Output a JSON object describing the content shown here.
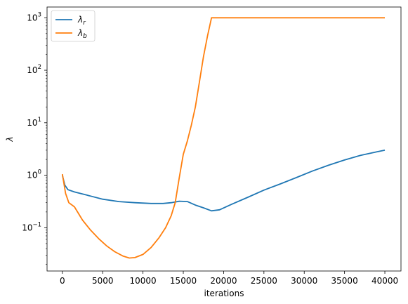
{
  "chart_data": {
    "type": "line",
    "xlabel": "iterations",
    "ylabel": "λ",
    "y_scale": "log",
    "xlim": [
      -1900,
      42000
    ],
    "ylim": [
      0.015,
      1600
    ],
    "grid": false,
    "legend_placement": "top-left",
    "x_ticks": [
      {
        "value": 0,
        "label": "0"
      },
      {
        "value": 5000,
        "label": "5000"
      },
      {
        "value": 10000,
        "label": "10000"
      },
      {
        "value": 15000,
        "label": "15000"
      },
      {
        "value": 20000,
        "label": "20000"
      },
      {
        "value": 25000,
        "label": "25000"
      },
      {
        "value": 30000,
        "label": "30000"
      },
      {
        "value": 35000,
        "label": "35000"
      },
      {
        "value": 40000,
        "label": "40000"
      }
    ],
    "y_ticks": [
      {
        "value": 0.1,
        "base": "10",
        "exp": "−1"
      },
      {
        "value": 1,
        "base": "10",
        "exp": "0"
      },
      {
        "value": 10,
        "base": "10",
        "exp": "1"
      },
      {
        "value": 100,
        "base": "10",
        "exp": "2"
      },
      {
        "value": 1000,
        "base": "10",
        "exp": "3"
      }
    ],
    "series": [
      {
        "symbol": "λ",
        "subscript": "r",
        "color": "#1f77b4",
        "points": [
          [
            0,
            1.0
          ],
          [
            300,
            0.65
          ],
          [
            700,
            0.53
          ],
          [
            1500,
            0.48
          ],
          [
            3000,
            0.42
          ],
          [
            5000,
            0.35
          ],
          [
            7000,
            0.315
          ],
          [
            9000,
            0.3
          ],
          [
            11000,
            0.29
          ],
          [
            12500,
            0.29
          ],
          [
            13500,
            0.3
          ],
          [
            14500,
            0.32
          ],
          [
            15500,
            0.315
          ],
          [
            16500,
            0.27
          ],
          [
            17500,
            0.24
          ],
          [
            18500,
            0.21
          ],
          [
            19500,
            0.22
          ],
          [
            21000,
            0.28
          ],
          [
            23000,
            0.38
          ],
          [
            25000,
            0.52
          ],
          [
            27000,
            0.68
          ],
          [
            29000,
            0.9
          ],
          [
            31000,
            1.2
          ],
          [
            33000,
            1.55
          ],
          [
            35000,
            1.95
          ],
          [
            37000,
            2.4
          ],
          [
            39000,
            2.8
          ],
          [
            40000,
            3.0
          ]
        ]
      },
      {
        "symbol": "λ",
        "subscript": "b",
        "color": "#ff7f0e",
        "points": [
          [
            0,
            1.05
          ],
          [
            400,
            0.45
          ],
          [
            800,
            0.3
          ],
          [
            1500,
            0.25
          ],
          [
            2500,
            0.14
          ],
          [
            3500,
            0.09
          ],
          [
            4500,
            0.062
          ],
          [
            5500,
            0.045
          ],
          [
            6500,
            0.035
          ],
          [
            7500,
            0.029
          ],
          [
            8300,
            0.0265
          ],
          [
            9000,
            0.027
          ],
          [
            10000,
            0.031
          ],
          [
            11000,
            0.042
          ],
          [
            12000,
            0.065
          ],
          [
            12800,
            0.1
          ],
          [
            13500,
            0.17
          ],
          [
            14000,
            0.3
          ],
          [
            14500,
            0.9
          ],
          [
            15000,
            2.5
          ],
          [
            15500,
            4.5
          ],
          [
            16000,
            9
          ],
          [
            16500,
            20
          ],
          [
            17000,
            60
          ],
          [
            17500,
            180
          ],
          [
            18000,
            450
          ],
          [
            18500,
            1000
          ],
          [
            25000,
            1000
          ],
          [
            30000,
            1000
          ],
          [
            35000,
            1000
          ],
          [
            40000,
            1000
          ]
        ]
      }
    ]
  }
}
